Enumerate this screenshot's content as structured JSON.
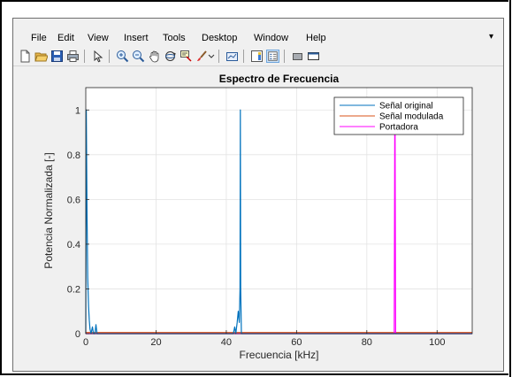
{
  "menu": {
    "items": [
      "File",
      "Edit",
      "View",
      "Insert",
      "Tools",
      "Desktop",
      "Window",
      "Help"
    ],
    "overflow_icon": "chevron-right-icon"
  },
  "toolbar": {
    "icons": [
      "new-figure-icon",
      "open-file-icon",
      "save-icon",
      "print-icon",
      "pointer-icon",
      "zoom-in-icon",
      "zoom-out-icon",
      "pan-icon",
      "rotate-3d-icon",
      "data-cursor-icon",
      "brush-icon",
      "link-plot-icon",
      "colorbar-icon",
      "legend-icon",
      "hide-plot-tools-icon",
      "show-plot-tools-icon"
    ],
    "active": "legend-icon"
  },
  "colors": {
    "original": "#0072bd",
    "modulada": "#d95319",
    "portadora": "#ff00ff"
  },
  "chart_data": {
    "type": "line",
    "title": "Espectro de Frecuencia",
    "xlabel": "Frecuencia [kHz]",
    "ylabel": "Potencia Normalizada [-]",
    "xlim": [
      0,
      110
    ],
    "ylim": [
      0,
      1.1
    ],
    "xticks": [
      0,
      20,
      40,
      60,
      80,
      100
    ],
    "yticks": [
      0,
      0.2,
      0.4,
      0.6,
      0.8,
      1
    ],
    "grid": true,
    "legend_position": "top-right",
    "legend": [
      "Señal original",
      "Señal modulada",
      "Portadora"
    ],
    "series": [
      {
        "name": "Señal original",
        "color": "#0072bd",
        "points": [
          [
            0,
            0
          ],
          [
            0.15,
            1.0
          ],
          [
            0.35,
            0.55
          ],
          [
            0.55,
            0.25
          ],
          [
            0.8,
            0.12
          ],
          [
            1.0,
            0.06
          ],
          [
            1.2,
            0.02
          ],
          [
            1.5,
            0.0
          ],
          [
            1.9,
            0.03
          ],
          [
            2.2,
            0.0
          ],
          [
            2.6,
            0.0
          ],
          [
            2.9,
            0.04
          ],
          [
            3.2,
            0.0
          ],
          [
            42.0,
            0.0
          ],
          [
            42.4,
            0.03
          ],
          [
            42.7,
            0.0
          ],
          [
            43.1,
            0.05
          ],
          [
            43.4,
            0.1
          ],
          [
            43.7,
            0.05
          ],
          [
            43.9,
            0.2
          ],
          [
            44.0,
            1.0
          ],
          [
            44.1,
            0.2
          ],
          [
            44.3,
            0.0
          ],
          [
            110,
            0.0
          ]
        ]
      },
      {
        "name": "Señal modulada",
        "color": "#d95319",
        "points": [
          [
            0,
            0.005
          ],
          [
            110,
            0.005
          ]
        ]
      },
      {
        "name": "Portadora",
        "color": "#ff00ff",
        "points": [
          [
            0,
            0.0
          ],
          [
            87.8,
            0.0
          ],
          [
            87.95,
            0.9
          ],
          [
            88.0,
            1.0
          ],
          [
            88.05,
            0.9
          ],
          [
            88.2,
            0.0
          ],
          [
            110,
            0.0
          ]
        ]
      }
    ]
  }
}
